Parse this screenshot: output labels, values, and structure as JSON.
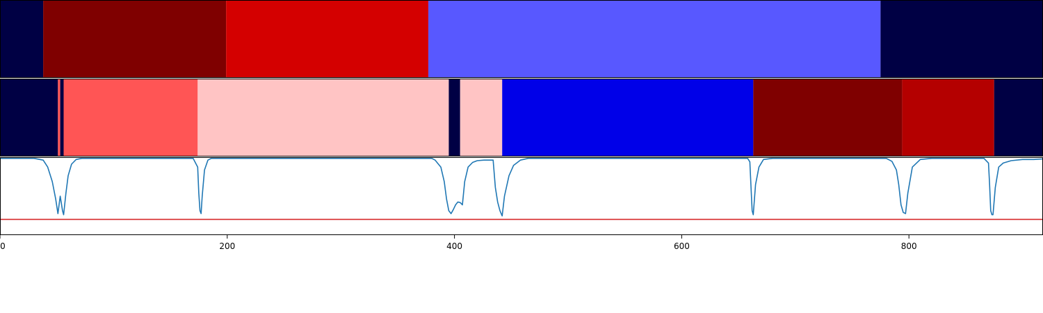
{
  "chart_data": {
    "type": "segmentation-timeline",
    "title": "",
    "xlabel": "",
    "ylabel": "",
    "xlim": [
      0,
      918
    ],
    "x_ticks": [
      0,
      200,
      400,
      600,
      800
    ],
    "x_tick_labels": [
      "0",
      "200",
      "400",
      "600",
      "800"
    ],
    "rows": [
      {
        "segments": [
          {
            "start": 0,
            "end": 38,
            "color": "#000044"
          },
          {
            "start": 38,
            "end": 199,
            "color": "#7f0000"
          },
          {
            "start": 199,
            "end": 377,
            "color": "#d40000"
          },
          {
            "start": 377,
            "end": 775,
            "color": "#5858ff"
          },
          {
            "start": 775,
            "end": 918,
            "color": "#000044"
          }
        ]
      },
      {
        "segments": [
          {
            "start": 0,
            "end": 51,
            "color": "#000044"
          },
          {
            "start": 51,
            "end": 53,
            "color": "#ff5555"
          },
          {
            "start": 53,
            "end": 56,
            "color": "#000044"
          },
          {
            "start": 56,
            "end": 174,
            "color": "#ff5555"
          },
          {
            "start": 174,
            "end": 395,
            "color": "#ffc4c4"
          },
          {
            "start": 395,
            "end": 405,
            "color": "#000044"
          },
          {
            "start": 405,
            "end": 442,
            "color": "#ffc4c4"
          },
          {
            "start": 442,
            "end": 663,
            "color": "#0000e8"
          },
          {
            "start": 663,
            "end": 794,
            "color": "#7f0000"
          },
          {
            "start": 794,
            "end": 875,
            "color": "#b40000"
          },
          {
            "start": 875,
            "end": 918,
            "color": "#000044"
          }
        ]
      }
    ],
    "line_panel": {
      "ylim": [
        -0.32,
        1.02
      ],
      "series": [
        {
          "color": "#1f77b4",
          "points": [
            [
              0,
              1
            ],
            [
              30,
              1
            ],
            [
              38,
              0.97
            ],
            [
              42,
              0.85
            ],
            [
              46,
              0.6
            ],
            [
              49,
              0.3
            ],
            [
              51,
              0.05
            ],
            [
              53,
              0.35
            ],
            [
              55,
              0.1
            ],
            [
              56,
              0.03
            ],
            [
              58,
              0.4
            ],
            [
              60,
              0.7
            ],
            [
              63,
              0.9
            ],
            [
              67,
              0.98
            ],
            [
              72,
              1
            ],
            [
              170,
              1
            ],
            [
              174,
              0.85
            ],
            [
              175,
              0.4
            ],
            [
              176,
              0.1
            ],
            [
              177,
              0.05
            ],
            [
              178,
              0.35
            ],
            [
              180,
              0.8
            ],
            [
              183,
              0.97
            ],
            [
              186,
              1
            ],
            [
              380,
              1
            ],
            [
              383,
              0.97
            ],
            [
              388,
              0.85
            ],
            [
              391,
              0.6
            ],
            [
              393,
              0.3
            ],
            [
              395,
              0.1
            ],
            [
              397,
              0.05
            ],
            [
              399,
              0.12
            ],
            [
              401,
              0.2
            ],
            [
              403,
              0.25
            ],
            [
              405,
              0.24
            ],
            [
              407,
              0.2
            ],
            [
              409,
              0.6
            ],
            [
              412,
              0.85
            ],
            [
              416,
              0.93
            ],
            [
              420,
              0.96
            ],
            [
              426,
              0.97
            ],
            [
              434,
              0.97
            ],
            [
              436,
              0.5
            ],
            [
              438,
              0.25
            ],
            [
              440,
              0.1
            ],
            [
              442,
              0.01
            ],
            [
              444,
              0.35
            ],
            [
              448,
              0.7
            ],
            [
              452,
              0.88
            ],
            [
              458,
              0.97
            ],
            [
              465,
              1
            ],
            [
              658,
              1
            ],
            [
              660,
              0.94
            ],
            [
              661,
              0.5
            ],
            [
              662,
              0.1
            ],
            [
              663,
              0.03
            ],
            [
              665,
              0.55
            ],
            [
              668,
              0.85
            ],
            [
              672,
              0.98
            ],
            [
              680,
              1
            ],
            [
              780,
              1
            ],
            [
              785,
              0.95
            ],
            [
              789,
              0.8
            ],
            [
              791,
              0.55
            ],
            [
              793,
              0.2
            ],
            [
              795,
              0.07
            ],
            [
              797,
              0.05
            ],
            [
              799,
              0.4
            ],
            [
              803,
              0.85
            ],
            [
              810,
              0.98
            ],
            [
              820,
              1
            ],
            [
              866,
              1
            ],
            [
              870,
              0.92
            ],
            [
              871,
              0.55
            ],
            [
              872,
              0.1
            ],
            [
              873,
              0.03
            ],
            [
              874,
              0.03
            ],
            [
              876,
              0.5
            ],
            [
              879,
              0.85
            ],
            [
              883,
              0.92
            ],
            [
              890,
              0.96
            ],
            [
              900,
              0.98
            ],
            [
              910,
              0.98
            ],
            [
              918,
              0.99
            ]
          ]
        },
        {
          "color": "#d62728",
          "points": [
            [
              0,
              -0.05
            ],
            [
              918,
              -0.05
            ]
          ]
        }
      ]
    }
  }
}
